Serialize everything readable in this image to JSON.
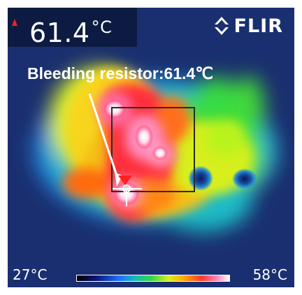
{
  "thermal_view": {
    "current_temperature": "61.4",
    "temperature_unit": "°C",
    "brand": "FLIR",
    "annotation": "Bleeding resistor:61.4℃",
    "scale_min": "27°C",
    "scale_max": "58°C"
  },
  "colors": {
    "cold": "#1a2f6f",
    "warm": "#ffdf1d",
    "hot": "#ff2d3a",
    "highlight": "#ffffff"
  },
  "icons": [
    "warning-marker-icon",
    "flir-logo-icon",
    "crosshair-icon",
    "spot-meter-marker-icon",
    "annotation-arrow-icon"
  ]
}
